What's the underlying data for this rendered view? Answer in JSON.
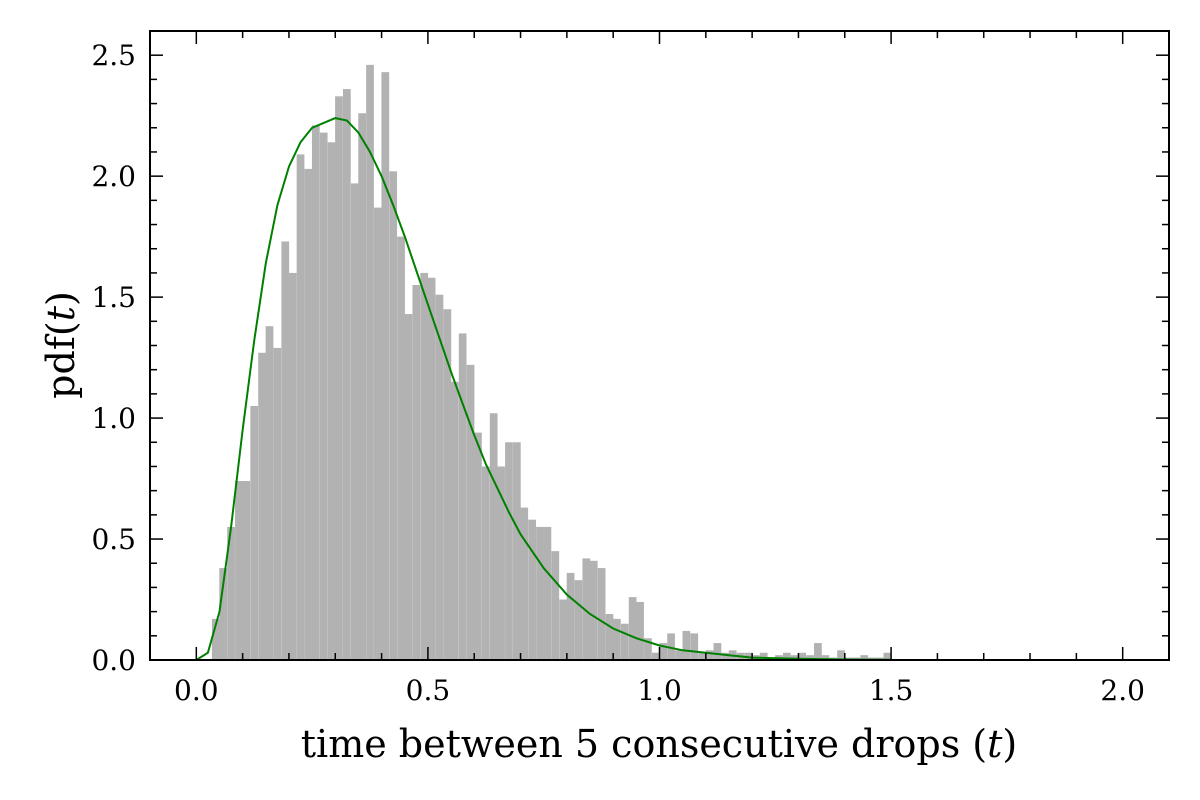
{
  "chart_data": {
    "type": "bar",
    "title": "",
    "xlabel": "time between 5 consecutive drops ($t$)",
    "xlabel_parts": {
      "pre": "time between 5 consecutive drops (",
      "var": "t",
      "post": ")"
    },
    "ylabel": "pdf($t$)",
    "ylabel_parts": {
      "pre": "pdf(",
      "var": "t",
      "post": ")"
    },
    "xlim": [
      -0.1,
      2.1
    ],
    "ylim": [
      0,
      2.6
    ],
    "xticks": [
      0.0,
      0.5,
      1.0,
      1.5,
      2.0
    ],
    "xtick_labels": [
      "0.0",
      "0.5",
      "1.0",
      "1.5",
      "2.0"
    ],
    "yticks": [
      0.0,
      0.5,
      1.0,
      1.5,
      2.0,
      2.5
    ],
    "ytick_labels": [
      "0.0",
      "0.5",
      "1.0",
      "1.5",
      "2.0",
      "2.5"
    ],
    "grid": false,
    "histogram": {
      "name": "",
      "color": "#b2b2b2",
      "bin_width": 0.0167,
      "bins": [
        {
          "x": 0.042,
          "y": 0.17
        },
        {
          "x": 0.058,
          "y": 0.38
        },
        {
          "x": 0.075,
          "y": 0.55
        },
        {
          "x": 0.092,
          "y": 0.74
        },
        {
          "x": 0.108,
          "y": 0.74
        },
        {
          "x": 0.125,
          "y": 1.05
        },
        {
          "x": 0.142,
          "y": 1.27
        },
        {
          "x": 0.158,
          "y": 1.38
        },
        {
          "x": 0.175,
          "y": 1.29
        },
        {
          "x": 0.192,
          "y": 1.73
        },
        {
          "x": 0.208,
          "y": 1.6
        },
        {
          "x": 0.225,
          "y": 2.09
        },
        {
          "x": 0.242,
          "y": 2.03
        },
        {
          "x": 0.258,
          "y": 2.21
        },
        {
          "x": 0.275,
          "y": 2.18
        },
        {
          "x": 0.292,
          "y": 2.14
        },
        {
          "x": 0.308,
          "y": 2.33
        },
        {
          "x": 0.325,
          "y": 2.36
        },
        {
          "x": 0.342,
          "y": 1.97
        },
        {
          "x": 0.358,
          "y": 2.26
        },
        {
          "x": 0.375,
          "y": 2.46
        },
        {
          "x": 0.392,
          "y": 1.87
        },
        {
          "x": 0.408,
          "y": 2.43
        },
        {
          "x": 0.425,
          "y": 2.02
        },
        {
          "x": 0.442,
          "y": 1.75
        },
        {
          "x": 0.458,
          "y": 1.43
        },
        {
          "x": 0.475,
          "y": 1.55
        },
        {
          "x": 0.492,
          "y": 1.6
        },
        {
          "x": 0.508,
          "y": 1.58
        },
        {
          "x": 0.525,
          "y": 1.51
        },
        {
          "x": 0.542,
          "y": 1.45
        },
        {
          "x": 0.558,
          "y": 1.15
        },
        {
          "x": 0.575,
          "y": 1.35
        },
        {
          "x": 0.592,
          "y": 1.22
        },
        {
          "x": 0.608,
          "y": 0.94
        },
        {
          "x": 0.625,
          "y": 0.8
        },
        {
          "x": 0.642,
          "y": 1.02
        },
        {
          "x": 0.658,
          "y": 0.8
        },
        {
          "x": 0.675,
          "y": 0.9
        },
        {
          "x": 0.692,
          "y": 0.9
        },
        {
          "x": 0.708,
          "y": 0.63
        },
        {
          "x": 0.725,
          "y": 0.58
        },
        {
          "x": 0.742,
          "y": 0.55
        },
        {
          "x": 0.758,
          "y": 0.55
        },
        {
          "x": 0.775,
          "y": 0.45
        },
        {
          "x": 0.792,
          "y": 0.25
        },
        {
          "x": 0.808,
          "y": 0.36
        },
        {
          "x": 0.825,
          "y": 0.33
        },
        {
          "x": 0.842,
          "y": 0.42
        },
        {
          "x": 0.858,
          "y": 0.41
        },
        {
          "x": 0.875,
          "y": 0.38
        },
        {
          "x": 0.892,
          "y": 0.19
        },
        {
          "x": 0.908,
          "y": 0.17
        },
        {
          "x": 0.925,
          "y": 0.15
        },
        {
          "x": 0.942,
          "y": 0.26
        },
        {
          "x": 0.958,
          "y": 0.24
        },
        {
          "x": 0.975,
          "y": 0.09
        },
        {
          "x": 0.992,
          "y": 0.03
        },
        {
          "x": 1.008,
          "y": 0.07
        },
        {
          "x": 1.025,
          "y": 0.11
        },
        {
          "x": 1.042,
          "y": 0.04
        },
        {
          "x": 1.058,
          "y": 0.12
        },
        {
          "x": 1.075,
          "y": 0.11
        },
        {
          "x": 1.092,
          "y": 0.03
        },
        {
          "x": 1.108,
          "y": 0.04
        },
        {
          "x": 1.125,
          "y": 0.07
        },
        {
          "x": 1.142,
          "y": 0.03
        },
        {
          "x": 1.158,
          "y": 0.04
        },
        {
          "x": 1.175,
          "y": 0.03
        },
        {
          "x": 1.192,
          "y": 0.03
        },
        {
          "x": 1.208,
          "y": 0.02
        },
        {
          "x": 1.225,
          "y": 0.03
        },
        {
          "x": 1.242,
          "y": 0.01
        },
        {
          "x": 1.258,
          "y": 0.02
        },
        {
          "x": 1.275,
          "y": 0.03
        },
        {
          "x": 1.292,
          "y": 0.02
        },
        {
          "x": 1.308,
          "y": 0.03
        },
        {
          "x": 1.325,
          "y": 0.02
        },
        {
          "x": 1.342,
          "y": 0.07
        },
        {
          "x": 1.358,
          "y": 0.02
        },
        {
          "x": 1.375,
          "y": 0.01
        },
        {
          "x": 1.392,
          "y": 0.04
        },
        {
          "x": 1.408,
          "y": 0.01
        },
        {
          "x": 1.425,
          "y": 0.01
        },
        {
          "x": 1.442,
          "y": 0.02
        },
        {
          "x": 1.458,
          "y": 0.01
        },
        {
          "x": 1.475,
          "y": 0.01
        },
        {
          "x": 1.492,
          "y": 0.03
        }
      ]
    },
    "fit_curve": {
      "name": "",
      "color": "#008000",
      "points": [
        [
          0.0,
          0.0
        ],
        [
          0.025,
          0.03
        ],
        [
          0.05,
          0.2
        ],
        [
          0.075,
          0.55
        ],
        [
          0.1,
          0.95
        ],
        [
          0.125,
          1.32
        ],
        [
          0.15,
          1.64
        ],
        [
          0.175,
          1.88
        ],
        [
          0.2,
          2.04
        ],
        [
          0.225,
          2.14
        ],
        [
          0.25,
          2.2
        ],
        [
          0.275,
          2.22
        ],
        [
          0.3,
          2.24
        ],
        [
          0.325,
          2.23
        ],
        [
          0.35,
          2.18
        ],
        [
          0.375,
          2.1
        ],
        [
          0.4,
          2.0
        ],
        [
          0.425,
          1.88
        ],
        [
          0.45,
          1.75
        ],
        [
          0.475,
          1.61
        ],
        [
          0.5,
          1.47
        ],
        [
          0.525,
          1.33
        ],
        [
          0.55,
          1.19
        ],
        [
          0.575,
          1.06
        ],
        [
          0.6,
          0.93
        ],
        [
          0.625,
          0.81
        ],
        [
          0.65,
          0.71
        ],
        [
          0.675,
          0.61
        ],
        [
          0.7,
          0.52
        ],
        [
          0.75,
          0.38
        ],
        [
          0.8,
          0.27
        ],
        [
          0.85,
          0.19
        ],
        [
          0.9,
          0.13
        ],
        [
          0.95,
          0.09
        ],
        [
          1.0,
          0.06
        ],
        [
          1.05,
          0.04
        ],
        [
          1.1,
          0.03
        ],
        [
          1.15,
          0.02
        ],
        [
          1.2,
          0.01
        ],
        [
          1.3,
          0.005
        ],
        [
          1.4,
          0.002
        ],
        [
          1.5,
          0.001
        ]
      ]
    }
  }
}
